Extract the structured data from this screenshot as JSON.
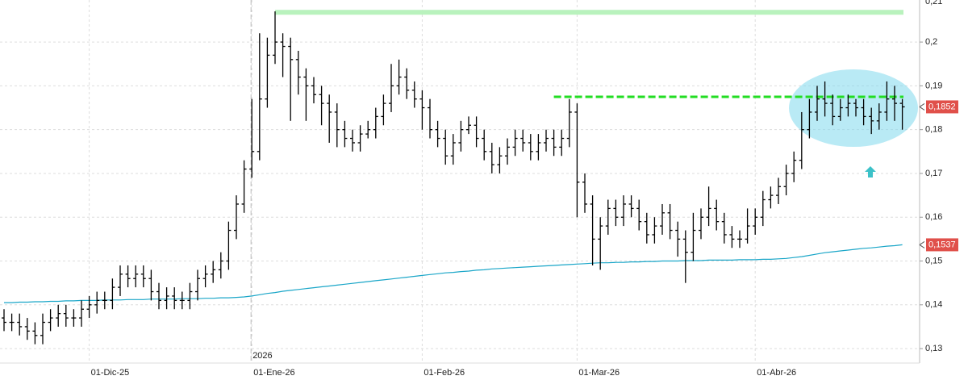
{
  "chart_data": {
    "type": "ohlc",
    "categories": [
      null,
      null,
      null,
      null,
      null,
      null,
      null,
      null,
      null,
      null,
      null,
      "01-Dic-25",
      null,
      null,
      null,
      null,
      null,
      null,
      null,
      null,
      null,
      null,
      null,
      null,
      null,
      null,
      null,
      null,
      null,
      null,
      null,
      null,
      "01-Ene-26",
      null,
      null,
      null,
      null,
      null,
      null,
      null,
      null,
      null,
      null,
      null,
      null,
      null,
      null,
      null,
      null,
      null,
      null,
      null,
      null,
      null,
      "01-Feb-26",
      null,
      null,
      null,
      null,
      null,
      null,
      null,
      null,
      null,
      null,
      null,
      null,
      null,
      null,
      null,
      null,
      null,
      null,
      null,
      "01-Mar-26",
      null,
      null,
      null,
      null,
      null,
      null,
      null,
      null,
      null,
      null,
      null,
      null,
      null,
      null,
      null,
      null,
      null,
      null,
      null,
      null,
      null,
      null,
      "01-Abr-26",
      null,
      null,
      null,
      null,
      null,
      null,
      null,
      null,
      null,
      null,
      null,
      null,
      null,
      null,
      null,
      null,
      null,
      null,
      null
    ],
    "open": [
      0.137,
      0.136,
      0.136,
      0.135,
      0.134,
      0.133,
      0.136,
      0.137,
      0.138,
      0.137,
      0.137,
      0.139,
      0.14,
      0.141,
      0.141,
      0.144,
      0.147,
      0.146,
      0.147,
      0.146,
      0.143,
      0.141,
      0.142,
      0.141,
      0.141,
      0.143,
      0.146,
      0.147,
      0.148,
      0.15,
      0.157,
      0.163,
      0.171,
      0.175,
      0.187,
      0.197,
      0.2,
      0.199,
      0.196,
      0.192,
      0.19,
      0.188,
      0.186,
      0.184,
      0.18,
      0.178,
      0.177,
      0.179,
      0.18,
      0.183,
      0.186,
      0.19,
      0.192,
      0.189,
      0.187,
      0.185,
      0.18,
      0.178,
      0.174,
      0.177,
      0.18,
      0.181,
      0.178,
      0.175,
      0.172,
      0.174,
      0.176,
      0.178,
      0.177,
      0.175,
      0.177,
      0.178,
      0.176,
      0.178,
      0.184,
      0.168,
      0.163,
      0.155,
      0.158,
      0.162,
      0.16,
      0.163,
      0.162,
      0.159,
      0.156,
      0.158,
      0.161,
      0.157,
      0.155,
      0.152,
      0.157,
      0.16,
      0.162,
      0.159,
      0.156,
      0.155,
      0.155,
      0.158,
      0.16,
      0.164,
      0.165,
      0.167,
      0.17,
      0.173,
      0.18,
      0.184,
      0.187,
      0.186,
      0.183,
      0.185,
      0.186,
      0.185,
      0.183,
      0.182,
      0.184,
      0.187,
      0.186
    ],
    "high": [
      0.139,
      0.138,
      0.138,
      0.137,
      0.136,
      0.138,
      0.139,
      0.14,
      0.14,
      0.139,
      0.141,
      0.142,
      0.143,
      0.143,
      0.146,
      0.149,
      0.149,
      0.149,
      0.149,
      0.148,
      0.145,
      0.144,
      0.144,
      0.143,
      0.145,
      0.148,
      0.149,
      0.15,
      0.152,
      0.159,
      0.165,
      0.173,
      0.187,
      0.202,
      0.201,
      0.207,
      0.202,
      0.201,
      0.198,
      0.194,
      0.192,
      0.19,
      0.188,
      0.186,
      0.182,
      0.18,
      0.181,
      0.182,
      0.185,
      0.188,
      0.195,
      0.196,
      0.194,
      0.191,
      0.189,
      0.187,
      0.182,
      0.18,
      0.179,
      0.182,
      0.183,
      0.183,
      0.18,
      0.177,
      0.176,
      0.178,
      0.18,
      0.18,
      0.179,
      0.179,
      0.18,
      0.18,
      0.18,
      0.187,
      0.186,
      0.17,
      0.165,
      0.16,
      0.164,
      0.164,
      0.165,
      0.165,
      0.164,
      0.161,
      0.16,
      0.163,
      0.163,
      0.159,
      0.157,
      0.161,
      0.162,
      0.167,
      0.164,
      0.161,
      0.158,
      0.157,
      0.162,
      0.162,
      0.166,
      0.167,
      0.169,
      0.172,
      0.175,
      0.184,
      0.187,
      0.19,
      0.191,
      0.188,
      0.187,
      0.188,
      0.187,
      0.187,
      0.185,
      0.186,
      0.191,
      0.19,
      0.187
    ],
    "low": [
      0.134,
      0.134,
      0.133,
      0.132,
      0.131,
      0.131,
      0.134,
      0.135,
      0.135,
      0.135,
      0.135,
      0.137,
      0.138,
      0.139,
      0.139,
      0.142,
      0.144,
      0.144,
      0.144,
      0.141,
      0.139,
      0.139,
      0.139,
      0.139,
      0.139,
      0.141,
      0.144,
      0.145,
      0.146,
      0.148,
      0.155,
      0.161,
      0.169,
      0.173,
      0.185,
      0.195,
      0.192,
      0.182,
      0.188,
      0.182,
      0.186,
      0.181,
      0.177,
      0.176,
      0.176,
      0.175,
      0.175,
      0.178,
      0.178,
      0.181,
      0.184,
      0.188,
      0.187,
      0.185,
      0.18,
      0.178,
      0.176,
      0.172,
      0.172,
      0.175,
      0.179,
      0.176,
      0.173,
      0.17,
      0.17,
      0.172,
      0.174,
      0.175,
      0.173,
      0.173,
      0.175,
      0.174,
      0.174,
      0.176,
      0.16,
      0.161,
      0.149,
      0.148,
      0.156,
      0.158,
      0.158,
      0.16,
      0.157,
      0.154,
      0.154,
      0.156,
      0.155,
      0.151,
      0.145,
      0.15,
      0.155,
      0.158,
      0.157,
      0.154,
      0.153,
      0.153,
      0.154,
      0.156,
      0.158,
      0.162,
      0.163,
      0.165,
      0.168,
      0.171,
      0.178,
      0.182,
      0.183,
      0.181,
      0.182,
      0.183,
      0.183,
      0.181,
      0.179,
      0.18,
      0.182,
      0.182,
      0.18
    ],
    "close": [
      0.136,
      0.136,
      0.135,
      0.134,
      0.133,
      0.136,
      0.137,
      0.138,
      0.137,
      0.137,
      0.139,
      0.14,
      0.141,
      0.141,
      0.144,
      0.147,
      0.146,
      0.147,
      0.146,
      0.143,
      0.141,
      0.142,
      0.141,
      0.141,
      0.143,
      0.146,
      0.147,
      0.148,
      0.15,
      0.157,
      0.163,
      0.171,
      0.175,
      0.187,
      0.197,
      0.2,
      0.199,
      0.196,
      0.192,
      0.19,
      0.188,
      0.186,
      0.184,
      0.18,
      0.178,
      0.177,
      0.179,
      0.18,
      0.183,
      0.186,
      0.19,
      0.192,
      0.189,
      0.187,
      0.185,
      0.18,
      0.178,
      0.174,
      0.177,
      0.18,
      0.181,
      0.178,
      0.175,
      0.172,
      0.174,
      0.176,
      0.178,
      0.177,
      0.175,
      0.177,
      0.178,
      0.176,
      0.178,
      0.184,
      0.168,
      0.163,
      0.155,
      0.158,
      0.162,
      0.16,
      0.163,
      0.162,
      0.159,
      0.156,
      0.158,
      0.161,
      0.157,
      0.155,
      0.152,
      0.157,
      0.16,
      0.162,
      0.159,
      0.156,
      0.155,
      0.155,
      0.158,
      0.16,
      0.164,
      0.165,
      0.167,
      0.17,
      0.173,
      0.18,
      0.184,
      0.187,
      0.186,
      0.183,
      0.185,
      0.186,
      0.185,
      0.183,
      0.182,
      0.184,
      0.187,
      0.186,
      0.1852
    ],
    "overlays": [
      {
        "color": "#1aa6c8",
        "values": [
          0.1405,
          0.1405,
          0.1406,
          0.1406,
          0.1407,
          0.1407,
          0.1408,
          0.1408,
          0.1409,
          0.1409,
          0.141,
          0.141,
          0.141,
          0.1411,
          0.1411,
          0.1411,
          0.1412,
          0.1412,
          0.1412,
          0.1413,
          0.1413,
          0.1413,
          0.1413,
          0.1414,
          0.1414,
          0.1414,
          0.1415,
          0.1415,
          0.1416,
          0.1416,
          0.1417,
          0.1418,
          0.142,
          0.1423,
          0.1426,
          0.1428,
          0.1431,
          0.1433,
          0.1435,
          0.1437,
          0.1439,
          0.1441,
          0.1443,
          0.1445,
          0.1447,
          0.1449,
          0.1451,
          0.1453,
          0.1455,
          0.1457,
          0.1459,
          0.1461,
          0.1463,
          0.1465,
          0.1467,
          0.1469,
          0.1471,
          0.1473,
          0.1474,
          0.1476,
          0.1477,
          0.1479,
          0.148,
          0.1482,
          0.1483,
          0.1484,
          0.1485,
          0.1486,
          0.1487,
          0.1488,
          0.1489,
          0.149,
          0.1491,
          0.1492,
          0.1493,
          0.1494,
          0.1495,
          0.1496,
          0.1496,
          0.1497,
          0.1497,
          0.1498,
          0.1498,
          0.1499,
          0.1499,
          0.15,
          0.15,
          0.15,
          0.1501,
          0.1501,
          0.1501,
          0.1502,
          0.1502,
          0.1502,
          0.1502,
          0.1503,
          0.1503,
          0.1503,
          0.1504,
          0.1504,
          0.1505,
          0.1506,
          0.1508,
          0.151,
          0.1513,
          0.1516,
          0.1519,
          0.1521,
          0.1523,
          0.1525,
          0.1527,
          0.1529,
          0.153,
          0.1532,
          0.1534,
          0.1535,
          0.1537
        ]
      }
    ],
    "markers": [
      {
        "value": 0.1852,
        "label": "0,1852",
        "color": "#e0504a"
      },
      {
        "value": 0.1537,
        "label": "0,1537",
        "color": "#e0504a"
      }
    ],
    "levels": [
      {
        "value": 0.2068,
        "color": "#b9f2bd",
        "dashed": false
      },
      {
        "value": 0.1875,
        "color": "#22dd22",
        "dashed": true
      }
    ],
    "year_label": "2026",
    "ylim": [
      0.1267,
      0.2096
    ],
    "yticks": [
      {
        "value": 0.13,
        "label": "0,13"
      },
      {
        "value": 0.14,
        "label": "0,14"
      },
      {
        "value": 0.15,
        "label": "0,15"
      },
      {
        "value": 0.16,
        "label": "0,16"
      },
      {
        "value": 0.17,
        "label": "0,17"
      },
      {
        "value": 0.18,
        "label": "0,18"
      },
      {
        "value": 0.19,
        "label": "0,19"
      },
      {
        "value": 0.2,
        "label": "0,2"
      },
      {
        "value": 0.21,
        "label": "0,21"
      }
    ],
    "grid": true,
    "bar_color": "#000000"
  }
}
